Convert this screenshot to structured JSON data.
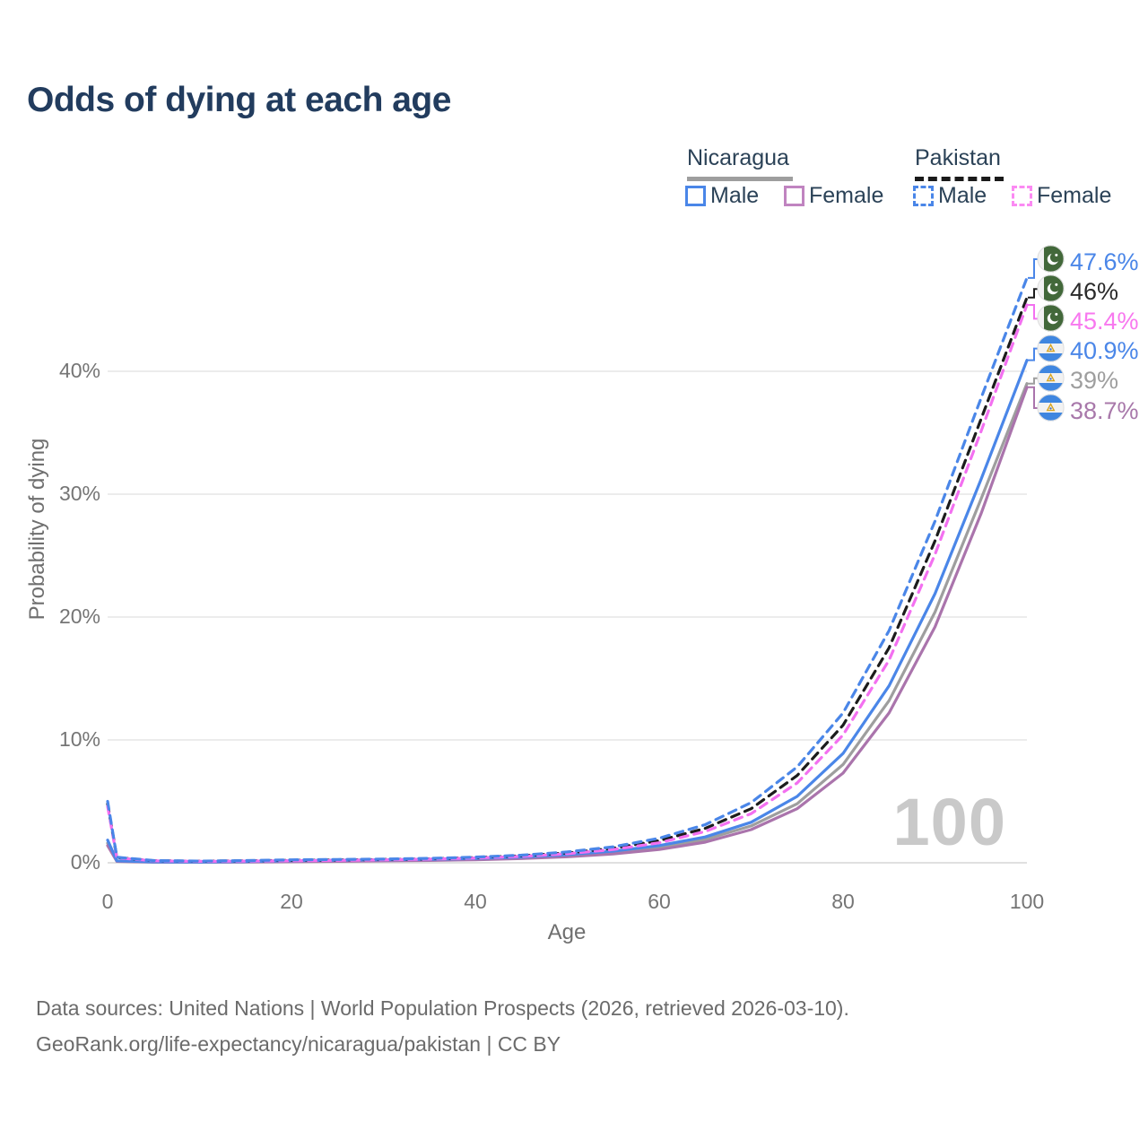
{
  "title": "Odds of dying at each age",
  "legend": {
    "groups": [
      {
        "name": "Nicaragua",
        "style": "solid",
        "color": "#9e9e9e"
      },
      {
        "name": "Pakistan",
        "style": "dashed",
        "color": "#1a1a1a"
      }
    ],
    "items": [
      {
        "group": "Nicaragua",
        "label": "Male",
        "color": "#4a86e8",
        "style": "solid"
      },
      {
        "group": "Nicaragua",
        "label": "Female",
        "color": "#c084c0",
        "style": "solid"
      },
      {
        "group": "Pakistan",
        "label": "Male",
        "color": "#4a86e8",
        "style": "dashed"
      },
      {
        "group": "Pakistan",
        "label": "Female",
        "color": "#fb8af3",
        "style": "dashed"
      }
    ]
  },
  "chart_data": {
    "type": "line",
    "title": "Odds of dying at each age",
    "xlabel": "Age",
    "ylabel": "Probability of dying",
    "x_ticks": [
      0,
      20,
      40,
      60,
      80,
      100
    ],
    "y_ticks": [
      0,
      10,
      20,
      30,
      40
    ],
    "y_tick_labels": [
      "0%",
      "10%",
      "20%",
      "30%",
      "40%"
    ],
    "xlim": [
      0,
      100
    ],
    "ylim": [
      0,
      49
    ],
    "grid": "horizontal",
    "legend_position": "top-right",
    "watermark": "100",
    "x": [
      0,
      1,
      5,
      10,
      15,
      20,
      25,
      30,
      35,
      40,
      45,
      50,
      55,
      60,
      65,
      70,
      75,
      80,
      85,
      90,
      95,
      100
    ],
    "series": [
      {
        "name": "Pakistan Male",
        "country": "pakistan",
        "sex": "male",
        "style": "dashed",
        "color": "#4a86e8",
        "label_color": "#4a86e8",
        "end_label": "47.6%",
        "values": [
          5.0,
          0.45,
          0.18,
          0.14,
          0.18,
          0.24,
          0.27,
          0.3,
          0.36,
          0.46,
          0.62,
          0.88,
          1.3,
          2.0,
          3.1,
          4.9,
          7.8,
          12.2,
          18.9,
          27.8,
          37.8,
          47.6
        ]
      },
      {
        "name": "Pakistan",
        "country": "pakistan",
        "sex": "both",
        "style": "dashed",
        "color": "#1c1c1c",
        "label_color": "#2a2a2a",
        "end_label": "46%",
        "values": [
          4.8,
          0.42,
          0.17,
          0.13,
          0.16,
          0.2,
          0.23,
          0.27,
          0.32,
          0.42,
          0.57,
          0.8,
          1.18,
          1.8,
          2.8,
          4.4,
          7.1,
          11.2,
          17.5,
          26.2,
          36.1,
          46.0
        ]
      },
      {
        "name": "Pakistan Female",
        "country": "pakistan",
        "sex": "female",
        "style": "dashed",
        "color": "#f370f0",
        "label_color": "#f878ef",
        "end_label": "45.4%",
        "values": [
          4.6,
          0.4,
          0.16,
          0.12,
          0.14,
          0.17,
          0.2,
          0.24,
          0.3,
          0.39,
          0.52,
          0.74,
          1.08,
          1.63,
          2.55,
          4.0,
          6.5,
          10.4,
          16.5,
          25.1,
          35.1,
          45.4
        ]
      },
      {
        "name": "Nicaragua Male",
        "country": "nicaragua",
        "sex": "male",
        "style": "solid",
        "color": "#4a86e8",
        "label_color": "#4a86e8",
        "end_label": "40.9%",
        "values": [
          1.85,
          0.16,
          0.07,
          0.06,
          0.1,
          0.17,
          0.21,
          0.24,
          0.28,
          0.35,
          0.47,
          0.66,
          0.95,
          1.4,
          2.1,
          3.3,
          5.4,
          8.9,
          14.4,
          21.9,
          31.2,
          40.9
        ]
      },
      {
        "name": "Nicaragua",
        "country": "nicaragua",
        "sex": "both",
        "style": "solid",
        "color": "#9e9e9e",
        "label_color": "#9e9e9e",
        "end_label": "39%",
        "values": [
          1.6,
          0.14,
          0.06,
          0.05,
          0.08,
          0.13,
          0.16,
          0.19,
          0.23,
          0.3,
          0.4,
          0.57,
          0.83,
          1.23,
          1.9,
          3.0,
          4.8,
          8.0,
          13.2,
          20.4,
          29.6,
          39.0
        ]
      },
      {
        "name": "Nicaragua Female",
        "country": "nicaragua",
        "sex": "female",
        "style": "solid",
        "color": "#aa74ac",
        "label_color": "#a878aa",
        "end_label": "38.7%",
        "values": [
          1.4,
          0.12,
          0.05,
          0.05,
          0.06,
          0.09,
          0.12,
          0.15,
          0.19,
          0.25,
          0.34,
          0.49,
          0.72,
          1.08,
          1.68,
          2.7,
          4.4,
          7.3,
          12.2,
          19.2,
          28.4,
          38.7
        ]
      }
    ]
  },
  "footer": {
    "line1": "Data sources: United Nations | World Population Prospects (2026, retrieved 2026-03-10).",
    "line2": "GeoRank.org/life-expectancy/nicaragua/pakistan | CC BY"
  }
}
